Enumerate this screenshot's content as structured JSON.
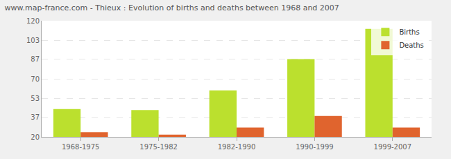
{
  "chart_data": {
    "type": "bar",
    "title": "www.map-france.com - Thieux : Evolution of births and deaths between 1968 and 2007",
    "categories": [
      "1968-1975",
      "1975-1982",
      "1982-1990",
      "1990-1999",
      "1999-2007"
    ],
    "series": [
      {
        "name": "Births",
        "color": "#bbe02e",
        "values": [
          44,
          43,
          60,
          87,
          113
        ]
      },
      {
        "name": "Deaths",
        "color": "#e0642e",
        "values": [
          24,
          22,
          28,
          38,
          28
        ]
      }
    ],
    "ylim": [
      20,
      120
    ],
    "yticks": [
      20,
      37,
      53,
      70,
      87,
      103,
      120
    ],
    "grid": true,
    "legend": "top-right"
  }
}
